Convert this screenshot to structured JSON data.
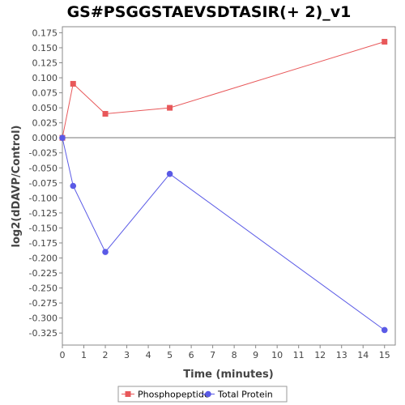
{
  "chart_data": {
    "type": "line",
    "title": "GS#PSGGSTAEVSDTASIR(+ 2)_v1",
    "xlabel": "Time (minutes)",
    "ylabel": "log2(dDAVP/Control)",
    "xlim": [
      0,
      15.5
    ],
    "ylim": [
      -0.345,
      0.185
    ],
    "x_ticks": [
      "0",
      "1",
      "2",
      "3",
      "4",
      "5",
      "6",
      "7",
      "8",
      "9",
      "10",
      "11",
      "12",
      "13",
      "14",
      "15"
    ],
    "y_ticks": [
      "0.175",
      "0.150",
      "0.125",
      "0.100",
      "0.075",
      "0.050",
      "0.025",
      "0.000",
      "-0.025",
      "-0.050",
      "-0.075",
      "-0.100",
      "-0.125",
      "-0.150",
      "-0.175",
      "-0.200",
      "-0.225",
      "-0.250",
      "-0.275",
      "-0.300",
      "-0.325"
    ],
    "grid": false,
    "zero_line": true,
    "legend_position": "bottom",
    "series": [
      {
        "name": "Phosphopeptide",
        "color": "#e8585a",
        "marker": "square",
        "x": [
          0,
          0.5,
          2,
          5,
          15
        ],
        "y": [
          0.0,
          0.09,
          0.04,
          0.05,
          0.16
        ]
      },
      {
        "name": "Total Protein",
        "color": "#5a5ae6",
        "marker": "circle",
        "x": [
          0,
          0.5,
          2,
          5,
          15
        ],
        "y": [
          0.0,
          -0.08,
          -0.19,
          -0.06,
          -0.32
        ]
      }
    ]
  }
}
